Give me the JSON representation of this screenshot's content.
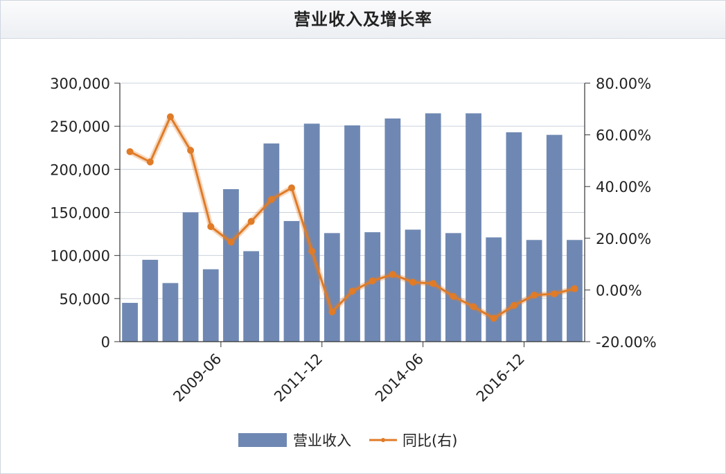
{
  "chart_data": {
    "type": "bar",
    "title": "营业收入及增长率",
    "x_tick_labels": [
      "2009-06",
      "2011-12",
      "2014-06",
      "2016-12"
    ],
    "y_left": {
      "ticks": [
        "0",
        "50,000",
        "100,000",
        "150,000",
        "200,000",
        "250,000",
        "300,000"
      ],
      "ylim": [
        0,
        300000
      ]
    },
    "y_right": {
      "ticks": [
        "-20.00%",
        "0.00%",
        "20.00%",
        "40.00%",
        "60.00%",
        "80.00%"
      ],
      "ylim": [
        -20,
        80
      ]
    },
    "series": [
      {
        "name": "营业收入",
        "kind": "bar",
        "axis": "left",
        "color": "#6f88b3",
        "values": [
          45000,
          95000,
          68000,
          150000,
          84000,
          177000,
          105000,
          230000,
          140000,
          253000,
          126000,
          251000,
          127000,
          259000,
          130000,
          265000,
          126000,
          265000,
          121000,
          243000,
          118000,
          240000,
          118000
        ]
      },
      {
        "name": "同比(右)",
        "kind": "line",
        "axis": "right",
        "color": "#e07b27",
        "values": [
          53.5,
          49.5,
          67,
          54,
          24.5,
          18.5,
          26.5,
          35,
          39.5,
          15,
          -8.5,
          -0.5,
          3.5,
          6,
          3,
          2.5,
          -2.5,
          -6.5,
          -11,
          -6,
          -2,
          -1.5,
          0.5
        ]
      }
    ],
    "grid": true,
    "legend": "bottom"
  }
}
